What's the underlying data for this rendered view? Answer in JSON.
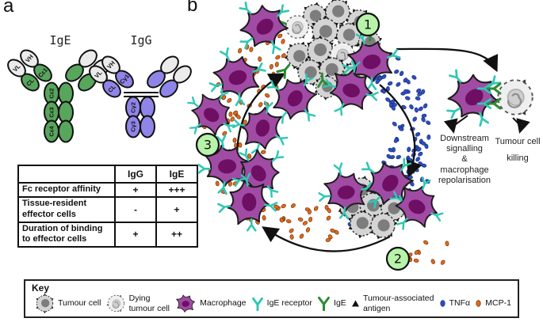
{
  "panel_a": {
    "label": "a",
    "ige": {
      "title": "IgE",
      "domains": {
        "vl": "VL",
        "vh": "VH",
        "cl": "CL",
        "c1": "Cε1",
        "c2": "Cε2",
        "c3": "Cε3",
        "c4": "Cε4"
      }
    },
    "igg": {
      "title": "IgG",
      "domains": {
        "vl": "VL",
        "vh": "VH",
        "cl": "CL",
        "c1": "Cγ1",
        "c2": "Cγ2",
        "c3": "Cγ3"
      }
    },
    "table": {
      "headers": [
        "",
        "IgG",
        "IgE"
      ],
      "rows": [
        {
          "label": "Fc receptor affinity",
          "igg": "+",
          "ige": "+++"
        },
        {
          "label": "Tissue-resident\neffector cells",
          "igg": "-",
          "ige": "+"
        },
        {
          "label": "Duration of binding\nto effector cells",
          "igg": "+",
          "ige": "++"
        }
      ]
    }
  },
  "panel_b": {
    "label": "b",
    "steps": [
      "1",
      "2",
      "3"
    ],
    "annotations": {
      "downstream": "Downstream\nsignalling\n&\nmacrophage\nrepolarisation",
      "killing": "Tumour cell\nkilling"
    }
  },
  "key": {
    "title": "Key",
    "items": [
      {
        "name": "tumour-cell",
        "label": "Tumour cell"
      },
      {
        "name": "dying-tumour-cell",
        "label": "Dying\ntumour cell"
      },
      {
        "name": "macrophage",
        "label": "Macrophage"
      },
      {
        "name": "ige-receptor",
        "label": "IgE receptor"
      },
      {
        "name": "ige",
        "label": "IgE"
      },
      {
        "name": "tumour-associated-antigen",
        "label": "Tumour-associated\nantigen"
      },
      {
        "name": "tnfa",
        "label": "TNFα"
      },
      {
        "name": "mcp1",
        "label": "MCP-1"
      }
    ]
  },
  "colors": {
    "ige_green": "#58a55c",
    "igg_purple": "#8f85e8",
    "macrophage_body": "#a04ba4",
    "macrophage_nucleus": "#6e0f63",
    "receptor_teal": "#2fc7b4",
    "ige_dark_green": "#2e8b33",
    "tnfa_blue": "#2f4ec4",
    "mcp1_orange": "#e06a1e",
    "step_circle_green": "#b7f3a9"
  }
}
